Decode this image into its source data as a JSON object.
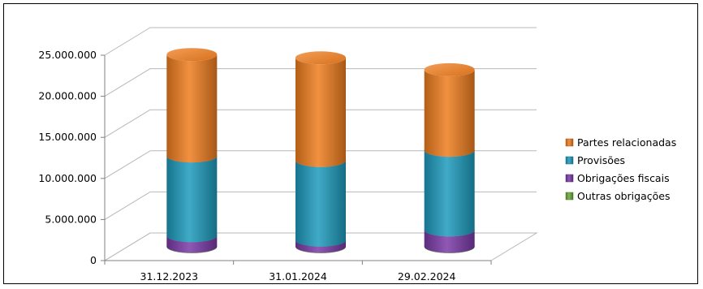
{
  "chart_data": {
    "type": "bar",
    "subtype": "stacked-3d-cylinder",
    "categories": [
      "31.12.2023",
      "31.01.2024",
      "29.02.2024"
    ],
    "series": [
      {
        "name": "Outras obrigações",
        "color": "#6aa83a",
        "values": [
          50000,
          50000,
          50000
        ]
      },
      {
        "name": "Obrigações fiscais",
        "color": "#7b3aa8",
        "values": [
          1300000,
          750000,
          2000000
        ]
      },
      {
        "name": "Provisões",
        "color": "#1e9bbd",
        "values": [
          9700000,
          9700000,
          9700000
        ]
      },
      {
        "name": "Partes relacionadas",
        "color": "#ef7e1f",
        "values": [
          12350000,
          12500000,
          9800000
        ]
      }
    ],
    "yticks": [
      "0",
      "5.000.000",
      "10.000.000",
      "15.000.000",
      "20.000.000",
      "25.000.000"
    ],
    "ylim": [
      0,
      25000000
    ],
    "grid": true,
    "legend_position": "right"
  }
}
